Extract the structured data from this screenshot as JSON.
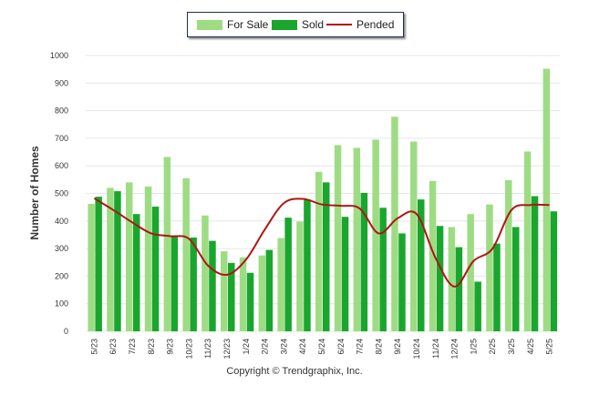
{
  "legend": {
    "for_sale": "For Sale",
    "sold": "Sold",
    "pended": "Pended"
  },
  "colors": {
    "for_sale": "#9edc84",
    "sold": "#19a62d",
    "pended": "#b01515",
    "grid": "#e6e6e6"
  },
  "ylabel": "Number of Homes",
  "copyright": "Copyright © Trendgraphix, Inc.",
  "chart_data": {
    "type": "bar",
    "categories": [
      "5/23",
      "6/23",
      "7/23",
      "8/23",
      "9/23",
      "10/23",
      "11/23",
      "12/23",
      "1/24",
      "2/24",
      "3/24",
      "4/24",
      "5/24",
      "6/24",
      "7/24",
      "8/24",
      "9/24",
      "10/24",
      "11/24",
      "12/24",
      "1/25",
      "2/25",
      "3/25",
      "4/25",
      "5/25"
    ],
    "series": [
      {
        "name": "For Sale",
        "kind": "bar",
        "values": [
          462,
          520,
          540,
          525,
          632,
          555,
          420,
          290,
          268,
          275,
          338,
          398,
          578,
          675,
          665,
          695,
          778,
          688,
          545,
          378,
          425,
          460,
          548,
          652,
          952
        ]
      },
      {
        "name": "Sold",
        "kind": "bar",
        "values": [
          488,
          508,
          425,
          452,
          348,
          340,
          328,
          248,
          212,
          295,
          412,
          478,
          540,
          415,
          502,
          448,
          355,
          478,
          382,
          305,
          180,
          318,
          378,
          490,
          435
        ]
      },
      {
        "name": "Pended",
        "kind": "line",
        "values": [
          482,
          440,
          395,
          355,
          345,
          335,
          238,
          205,
          260,
          370,
          465,
          480,
          460,
          455,
          445,
          355,
          410,
          425,
          265,
          162,
          255,
          300,
          440,
          458,
          458
        ]
      }
    ],
    "ylim": [
      0,
      1000
    ],
    "yticks": [
      0,
      100,
      200,
      300,
      400,
      500,
      600,
      700,
      800,
      900,
      1000
    ],
    "ylabel": "Number of Homes",
    "grid": true,
    "legend_position": "top-center"
  }
}
